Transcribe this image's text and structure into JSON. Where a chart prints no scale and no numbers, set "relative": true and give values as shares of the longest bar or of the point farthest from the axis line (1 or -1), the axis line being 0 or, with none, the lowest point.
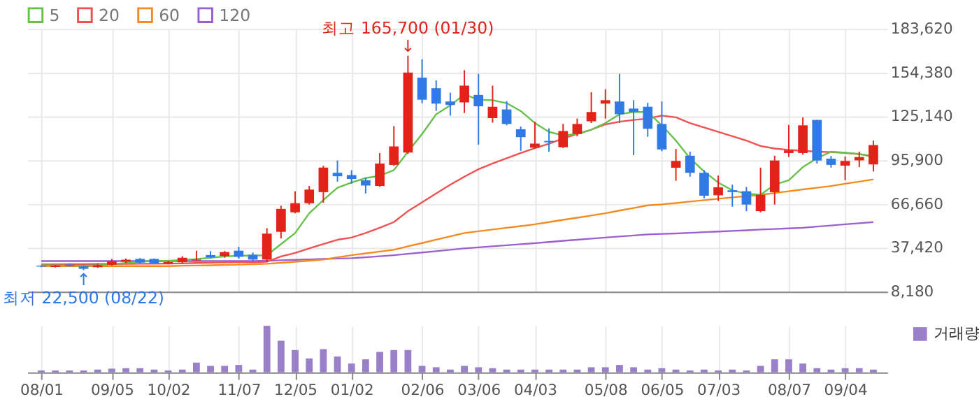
{
  "chart_data": [
    {
      "type": "candlestick",
      "legend": "top left",
      "grid": true,
      "tick_labels": "y",
      "categories": [
        null,
        null,
        null,
        null,
        null,
        null,
        null,
        null,
        null,
        null,
        null,
        null,
        null,
        null,
        null,
        null,
        null,
        null,
        null,
        null,
        null,
        null,
        null,
        null,
        null,
        null,
        null,
        null,
        null,
        null,
        null,
        null,
        null,
        null,
        null,
        null,
        null,
        null,
        null,
        null,
        null,
        null,
        null,
        null,
        null,
        null,
        null,
        null,
        null,
        null,
        null,
        null,
        null,
        null,
        null,
        null,
        null,
        null,
        null,
        null
      ],
      "ylim": [
        8180,
        183620
      ],
      "yticks": [
        {
          "value": 8180,
          "label": "8,180"
        },
        {
          "value": 37420,
          "label": "37,420"
        },
        {
          "value": 66660,
          "label": "66,660"
        },
        {
          "value": 95900,
          "label": "95,900"
        },
        {
          "value": 125140,
          "label": "125,140"
        },
        {
          "value": 154380,
          "label": "154,380"
        },
        {
          "value": 183620,
          "label": "183,620"
        }
      ],
      "ohlc": [
        [
          25500,
          25800,
          24500,
          24900
        ],
        [
          24600,
          26000,
          24300,
          25600
        ],
        [
          26200,
          27000,
          24800,
          25300
        ],
        [
          25000,
          25600,
          22500,
          23400
        ],
        [
          24500,
          27000,
          24000,
          25800
        ],
        [
          26100,
          30000,
          25500,
          28400
        ],
        [
          28200,
          30200,
          27300,
          29500
        ],
        [
          30000,
          30600,
          27000,
          27600
        ],
        [
          30000,
          30300,
          26800,
          27000
        ],
        [
          26700,
          28800,
          26400,
          27900
        ],
        [
          27800,
          31800,
          26800,
          30800
        ],
        [
          29000,
          35500,
          28800,
          29600
        ],
        [
          32600,
          35200,
          30500,
          31100
        ],
        [
          32000,
          35200,
          30800,
          34600
        ],
        [
          35500,
          38100,
          30200,
          31400
        ],
        [
          32800,
          34300,
          28700,
          29600
        ],
        [
          29600,
          50500,
          28100,
          46900
        ],
        [
          48100,
          65500,
          43700,
          63400
        ],
        [
          61100,
          75200,
          60500,
          67200
        ],
        [
          67200,
          78700,
          66300,
          76300
        ],
        [
          74600,
          92200,
          67500,
          91000
        ],
        [
          87500,
          95700,
          81600,
          85200
        ],
        [
          86000,
          89300,
          80200,
          83400
        ],
        [
          82500,
          84000,
          73700,
          79000
        ],
        [
          78700,
          100700,
          78100,
          93700
        ],
        [
          92800,
          118700,
          92200,
          105100
        ],
        [
          101000,
          165700,
          100100,
          154500
        ],
        [
          151000,
          163300,
          134000,
          136300
        ],
        [
          144000,
          149200,
          128900,
          133700
        ],
        [
          135100,
          141000,
          125700,
          132800
        ],
        [
          134500,
          156000,
          127500,
          145700
        ],
        [
          139500,
          153600,
          106300,
          131900
        ],
        [
          124000,
          145700,
          121000,
          131600
        ],
        [
          129800,
          135400,
          119200,
          120100
        ],
        [
          116600,
          118400,
          102200,
          111300
        ],
        [
          104300,
          121600,
          103700,
          107000
        ],
        [
          108800,
          117200,
          101600,
          107900
        ],
        [
          104600,
          120100,
          104000,
          115400
        ],
        [
          113400,
          123700,
          111900,
          120100
        ],
        [
          121900,
          141300,
          120700,
          128100
        ],
        [
          133700,
          143300,
          123700,
          136000
        ],
        [
          135100,
          153600,
          120700,
          126600
        ],
        [
          130400,
          136000,
          99300,
          128100
        ],
        [
          131600,
          134200,
          111600,
          116900
        ],
        [
          120100,
          135100,
          101900,
          103100
        ],
        [
          90900,
          103400,
          82200,
          95400
        ],
        [
          98900,
          101600,
          84900,
          87500
        ],
        [
          87500,
          89300,
          70500,
          72200
        ],
        [
          72500,
          85700,
          68700,
          77800
        ],
        [
          75800,
          79600,
          64900,
          74700
        ],
        [
          75200,
          78100,
          61900,
          66300
        ],
        [
          61900,
          91000,
          61100,
          72800
        ],
        [
          74600,
          98900,
          66300,
          95700
        ],
        [
          100700,
          119500,
          98100,
          102500
        ],
        [
          100700,
          124500,
          99600,
          119200
        ],
        [
          122800,
          122800,
          93700,
          95700
        ],
        [
          96900,
          98700,
          91000,
          92800
        ],
        [
          92300,
          98400,
          82500,
          95400
        ],
        [
          95800,
          101600,
          91300,
          98000
        ],
        [
          93100,
          109000,
          88400,
          106000
        ]
      ],
      "colors": [
        "#2f7ae5",
        "#e2231a",
        "#2f7ae5",
        "#2f7ae5",
        "#e2231a",
        "#e2231a",
        "#e2231a",
        "#2f7ae5",
        "#2f7ae5",
        "#e2231a",
        "#e2231a",
        "#e2231a",
        "#2f7ae5",
        "#e2231a",
        "#2f7ae5",
        "#2f7ae5",
        "#e2231a",
        "#e2231a",
        "#e2231a",
        "#e2231a",
        "#e2231a",
        "#2f7ae5",
        "#2f7ae5",
        "#2f7ae5",
        "#e2231a",
        "#e2231a",
        "#e2231a",
        "#2f7ae5",
        "#2f7ae5",
        "#2f7ae5",
        "#e2231a",
        "#2f7ae5",
        "#e2231a",
        "#2f7ae5",
        "#2f7ae5",
        "#e2231a",
        "#2f7ae5",
        "#e2231a",
        "#e2231a",
        "#e2231a",
        "#e2231a",
        "#2f7ae5",
        "#2f7ae5",
        "#2f7ae5",
        "#2f7ae5",
        "#e2231a",
        "#2f7ae5",
        "#2f7ae5",
        "#e2231a",
        "#2f7ae5",
        "#2f7ae5",
        "#e2231a",
        "#e2231a",
        "#e2231a",
        "#e2231a",
        "#2f7ae5",
        "#2f7ae5",
        "#e2231a",
        "#e2231a",
        "#e2231a"
      ],
      "series": [
        {
          "name": "5",
          "type": "line",
          "color": "#66c04a",
          "values": [
            25800,
            25700,
            25600,
            25500,
            25800,
            26400,
            27300,
            28100,
            28700,
            28700,
            29300,
            29900,
            30800,
            31700,
            32200,
            32200,
            32500,
            39900,
            47300,
            60500,
            69300,
            77500,
            81000,
            84000,
            85500,
            89300,
            101600,
            113400,
            126600,
            132500,
            139800,
            136300,
            136000,
            134000,
            128700,
            120700,
            114800,
            112500,
            113400,
            116300,
            120700,
            126600,
            128100,
            128100,
            119200,
            109000,
            97200,
            88400,
            81000,
            75800,
            73700,
            72800,
            79600,
            82500,
            91300,
            97200,
            101600,
            101000,
            100100,
            98100
          ]
        },
        {
          "name": "20",
          "type": "line",
          "color": "#f05050",
          "values": [
            26400,
            26400,
            26500,
            26500,
            26600,
            26600,
            26700,
            26800,
            26800,
            26900,
            27000,
            27300,
            27500,
            27700,
            27900,
            27900,
            28100,
            31700,
            34000,
            37000,
            39900,
            42800,
            44300,
            47300,
            50800,
            54600,
            61900,
            67800,
            73700,
            79600,
            84900,
            89900,
            93700,
            97200,
            100700,
            104000,
            106900,
            110400,
            113400,
            116300,
            119800,
            121600,
            122800,
            123700,
            125700,
            124500,
            120700,
            117800,
            114800,
            111900,
            109000,
            105400,
            103700,
            102800,
            102200,
            101600,
            101300,
            100700,
            99900,
            98700
          ]
        },
        {
          "name": "60",
          "type": "line",
          "color": "#f58a1f",
          "values": [
            25200,
            25200,
            25200,
            25200,
            25200,
            25200,
            25200,
            25200,
            25200,
            25200,
            25500,
            25600,
            25800,
            26000,
            26200,
            26500,
            26800,
            27400,
            28100,
            28800,
            29600,
            31100,
            32500,
            33700,
            34900,
            36100,
            38400,
            40600,
            42900,
            45100,
            47300,
            48500,
            49600,
            50800,
            51900,
            53100,
            54600,
            56100,
            57500,
            59000,
            60500,
            62300,
            64000,
            65800,
            66400,
            67300,
            68300,
            69200,
            70200,
            71100,
            71900,
            72800,
            74000,
            75200,
            76400,
            77500,
            78700,
            80200,
            81600,
            83100
          ]
        },
        {
          "name": "120",
          "type": "line",
          "color": "#9b5fd0",
          "values": [
            28600,
            28600,
            28600,
            28600,
            28600,
            28600,
            28600,
            28600,
            28600,
            28600,
            28600,
            28600,
            28600,
            28600,
            28600,
            28600,
            28800,
            29100,
            29400,
            29700,
            30000,
            30300,
            30500,
            31100,
            31800,
            32500,
            33400,
            34300,
            35200,
            36100,
            37000,
            37700,
            38400,
            39100,
            39800,
            40500,
            41300,
            42100,
            42800,
            43600,
            44300,
            45000,
            45700,
            46400,
            46700,
            47000,
            47400,
            47900,
            48300,
            48700,
            49100,
            49600,
            50000,
            50400,
            50800,
            51600,
            52300,
            53100,
            53800,
            54600
          ]
        }
      ],
      "annotations": [
        {
          "text": "↓",
          "y": 165700
        },
        {
          "text": "최고 165,700 (01/30)",
          "y": 165700
        },
        {
          "text": "↑",
          "y": 22500
        },
        {
          "text": "최저 22,500 (08/22)",
          "y": 22500
        }
      ]
    },
    {
      "type": "bar",
      "relative": true,
      "legend": "top right",
      "grid": "x",
      "tick_labels": "x",
      "categories": [
        "08/01",
        null,
        null,
        null,
        null,
        "09/05",
        null,
        null,
        null,
        "10/02",
        null,
        null,
        null,
        null,
        "11/07",
        null,
        null,
        null,
        "12/05",
        null,
        null,
        null,
        "01/02",
        null,
        null,
        null,
        null,
        "02/06",
        null,
        null,
        null,
        "03/06",
        null,
        null,
        null,
        "04/03",
        null,
        null,
        null,
        null,
        "05/08",
        null,
        null,
        null,
        "06/05",
        null,
        null,
        null,
        "07/03",
        null,
        null,
        null,
        null,
        "08/07",
        null,
        null,
        null,
        "09/04",
        null,
        null
      ],
      "series": [
        {
          "name": "거래량",
          "color": "#9a80c8",
          "values": [
            0.04,
            0.04,
            0.04,
            0.04,
            0.06,
            0.08,
            0.09,
            0.09,
            0.06,
            0.04,
            0.06,
            0.21,
            0.14,
            0.14,
            0.16,
            0.06,
            1,
            0.68,
            0.48,
            0.3,
            0.5,
            0.34,
            0.19,
            0.28,
            0.44,
            0.48,
            0.48,
            0.14,
            0.11,
            0.06,
            0.14,
            0.11,
            0.09,
            0.06,
            0.06,
            0.06,
            0.06,
            0.06,
            0.06,
            0.11,
            0.11,
            0.16,
            0.11,
            0.06,
            0.09,
            0.06,
            0.04,
            0.06,
            0.04,
            0.06,
            0.04,
            0.14,
            0.28,
            0.28,
            0.19,
            0.09,
            0.06,
            0.09,
            0.09,
            0.06
          ]
        }
      ]
    }
  ]
}
